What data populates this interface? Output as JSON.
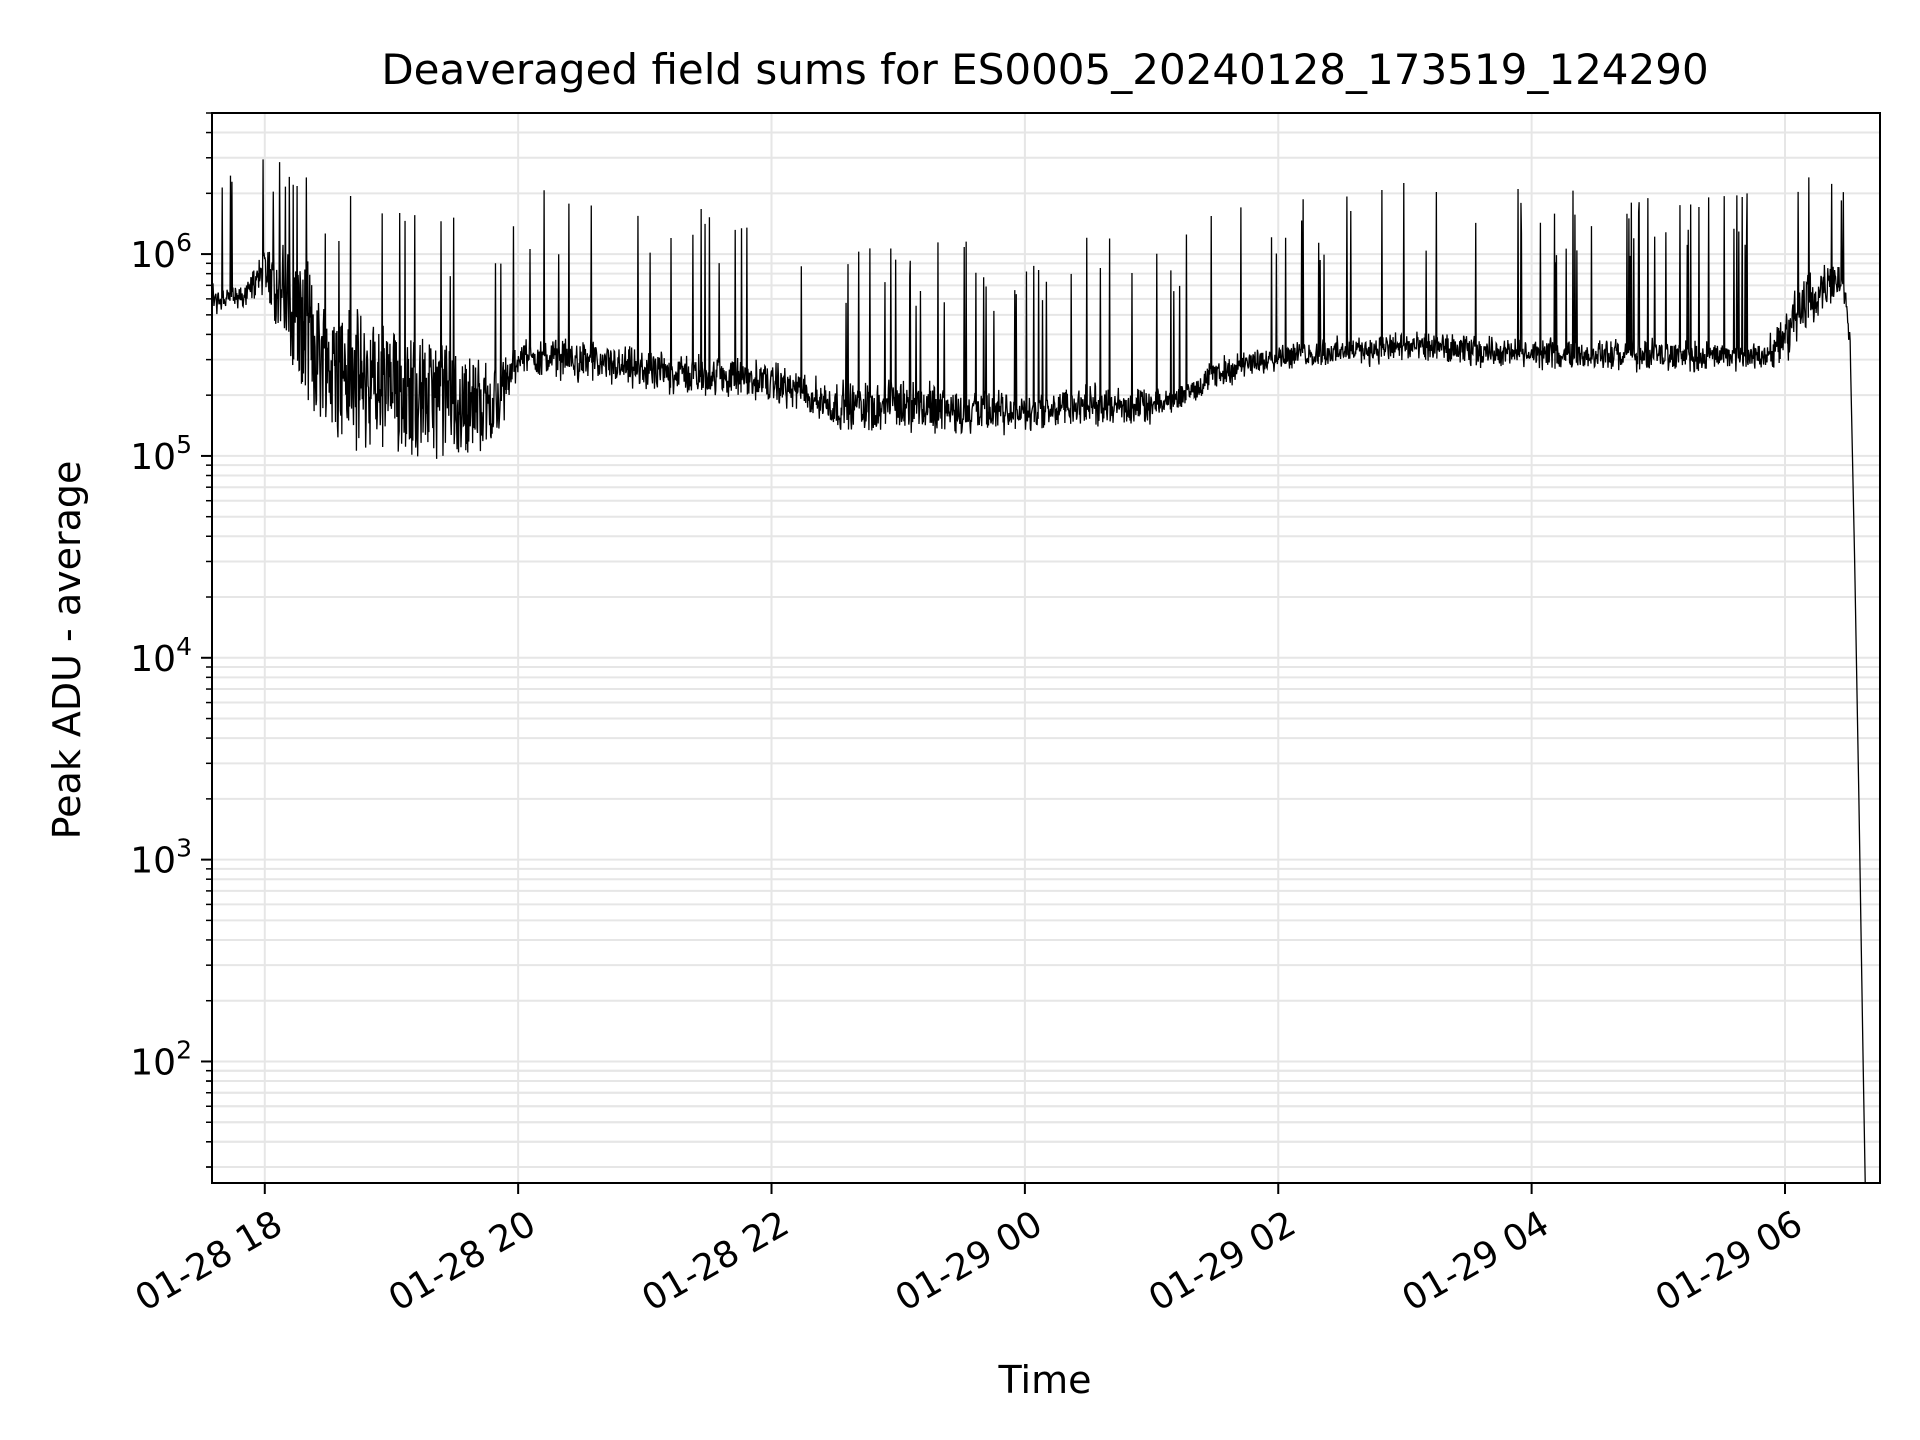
{
  "chart_data": {
    "type": "line",
    "title": "Deaveraged field sums for ES0005_20240128_173519_124290",
    "xlabel": "Time",
    "ylabel": "Peak ADU - average",
    "y_scale": "log",
    "grid": true,
    "colors": {
      "line": "#000000",
      "grid": "#e6e6e6",
      "axes": "#000000"
    },
    "xlim": [
      "2024-01-28 17:35",
      "2024-01-29 06:45"
    ],
    "ylim": [
      25,
      5000000
    ],
    "x_ticks": [
      {
        "value": "2024-01-28 18:00",
        "label": "01-28 18"
      },
      {
        "value": "2024-01-28 20:00",
        "label": "01-28 20"
      },
      {
        "value": "2024-01-28 22:00",
        "label": "01-28 22"
      },
      {
        "value": "2024-01-29 00:00",
        "label": "01-29 00"
      },
      {
        "value": "2024-01-29 02:00",
        "label": "01-29 02"
      },
      {
        "value": "2024-01-29 04:00",
        "label": "01-29 04"
      },
      {
        "value": "2024-01-29 06:00",
        "label": "01-29 06"
      }
    ],
    "y_ticks": [
      {
        "value": 100,
        "base": "10",
        "exp": "2"
      },
      {
        "value": 1000,
        "base": "10",
        "exp": "3"
      },
      {
        "value": 10000,
        "base": "10",
        "exp": "4"
      },
      {
        "value": 100000,
        "base": "10",
        "exp": "5"
      },
      {
        "value": 1000000,
        "base": "10",
        "exp": "6"
      }
    ],
    "series": [
      {
        "baseline": [
          [
            "2024-01-28 17:35",
            600000
          ],
          [
            "2024-01-28 17:50",
            550000
          ],
          [
            "2024-01-28 18:00",
            900000
          ],
          [
            "2024-01-28 18:15",
            700000
          ],
          [
            "2024-01-28 18:30",
            400000
          ],
          [
            "2024-01-28 19:00",
            300000
          ],
          [
            "2024-01-28 19:30",
            250000
          ],
          [
            "2024-01-28 19:50",
            200000
          ],
          [
            "2024-01-28 20:00",
            300000
          ],
          [
            "2024-01-28 20:30",
            300000
          ],
          [
            "2024-01-28 21:00",
            260000
          ],
          [
            "2024-01-28 21:30",
            250000
          ],
          [
            "2024-01-28 22:00",
            230000
          ],
          [
            "2024-01-28 22:30",
            180000
          ],
          [
            "2024-01-28 23:00",
            190000
          ],
          [
            "2024-01-28 23:30",
            170000
          ],
          [
            "2024-01-29 00:00",
            160000
          ],
          [
            "2024-01-29 00:30",
            180000
          ],
          [
            "2024-01-29 01:00",
            165000
          ],
          [
            "2024-01-29 01:15",
            180000
          ],
          [
            "2024-01-29 01:30",
            240000
          ],
          [
            "2024-01-29 02:00",
            290000
          ],
          [
            "2024-01-29 03:00",
            330000
          ],
          [
            "2024-01-29 04:00",
            300000
          ],
          [
            "2024-01-29 05:00",
            300000
          ],
          [
            "2024-01-29 05:50",
            290000
          ],
          [
            "2024-01-29 06:10",
            600000
          ],
          [
            "2024-01-29 06:25",
            800000
          ],
          [
            "2024-01-29 06:29",
            500000
          ],
          [
            "2024-01-29 06:31",
            300000
          ],
          [
            "2024-01-29 06:33",
            30000
          ],
          [
            "2024-01-29 06:35",
            2000
          ],
          [
            "2024-01-29 06:37",
            100
          ],
          [
            "2024-01-29 06:38",
            25
          ]
        ],
        "lower_envelope": [
          [
            "2024-01-28 17:35",
            450000
          ],
          [
            "2024-01-28 18:00",
            600000
          ],
          [
            "2024-01-28 18:20",
            150000
          ],
          [
            "2024-01-28 18:45",
            100000
          ],
          [
            "2024-01-28 19:30",
            90000
          ],
          [
            "2024-01-28 19:50",
            110000
          ],
          [
            "2024-01-28 20:00",
            250000
          ],
          [
            "2024-01-28 21:00",
            200000
          ],
          [
            "2024-01-28 22:00",
            180000
          ],
          [
            "2024-01-28 22:30",
            130000
          ],
          [
            "2024-01-28 23:30",
            120000
          ],
          [
            "2024-01-29 00:00",
            125000
          ],
          [
            "2024-01-29 01:00",
            140000
          ],
          [
            "2024-01-29 01:30",
            210000
          ],
          [
            "2024-01-29 02:00",
            260000
          ],
          [
            "2024-01-29 03:00",
            280000
          ],
          [
            "2024-01-29 05:00",
            250000
          ],
          [
            "2024-01-29 06:00",
            260000
          ],
          [
            "2024-01-29 06:25",
            600000
          ]
        ],
        "peak_spikes_max": 3000000
      }
    ]
  }
}
